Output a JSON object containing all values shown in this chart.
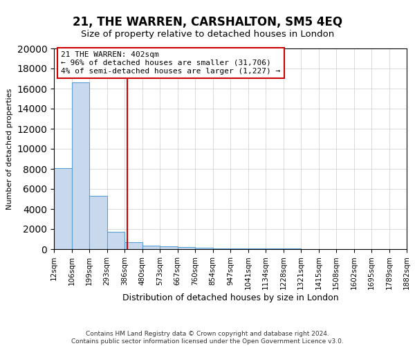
{
  "title": "21, THE WARREN, CARSHALTON, SM5 4EQ",
  "subtitle": "Size of property relative to detached houses in London",
  "xlabel": "Distribution of detached houses by size in London",
  "ylabel": "Number of detached properties",
  "footer_line1": "Contains HM Land Registry data © Crown copyright and database right 2024.",
  "footer_line2": "Contains public sector information licensed under the Open Government Licence v3.0.",
  "annotation_line1": "21 THE WARREN: 402sqm",
  "annotation_line2": "← 96% of detached houses are smaller (31,706)",
  "annotation_line3": "4% of semi-detached houses are larger (1,227) →",
  "bar_color": "#c8d9ee",
  "bar_edge_color": "#5a9fd4",
  "red_line_x": 402,
  "categories": [
    "12sqm",
    "106sqm",
    "199sqm",
    "293sqm",
    "386sqm",
    "480sqm",
    "573sqm",
    "667sqm",
    "760sqm",
    "854sqm",
    "947sqm",
    "1041sqm",
    "1134sqm",
    "1228sqm",
    "1321sqm",
    "1415sqm",
    "1508sqm",
    "1602sqm",
    "1695sqm",
    "1789sqm",
    "1882sqm"
  ],
  "bin_edges": [
    12,
    106,
    199,
    293,
    386,
    480,
    573,
    667,
    760,
    854,
    947,
    1041,
    1134,
    1228,
    1321,
    1415,
    1508,
    1602,
    1695,
    1789,
    1882
  ],
  "values": [
    8050,
    16600,
    5300,
    1750,
    700,
    350,
    250,
    175,
    130,
    90,
    70,
    55,
    45,
    35,
    28,
    22,
    18,
    14,
    10,
    8
  ],
  "ylim": [
    0,
    20000
  ],
  "yticks": [
    0,
    2000,
    4000,
    6000,
    8000,
    10000,
    12000,
    14000,
    16000,
    18000,
    20000
  ],
  "background_color": "#ffffff",
  "grid_color": "#cccccc",
  "title_fontsize": 12,
  "subtitle_fontsize": 9.5,
  "annotation_box_color": "#ffffff",
  "annotation_box_edge": "#cc0000",
  "annotation_fontsize": 8,
  "ylabel_fontsize": 8,
  "xlabel_fontsize": 9,
  "tick_fontsize": 7.5,
  "footer_fontsize": 6.5
}
